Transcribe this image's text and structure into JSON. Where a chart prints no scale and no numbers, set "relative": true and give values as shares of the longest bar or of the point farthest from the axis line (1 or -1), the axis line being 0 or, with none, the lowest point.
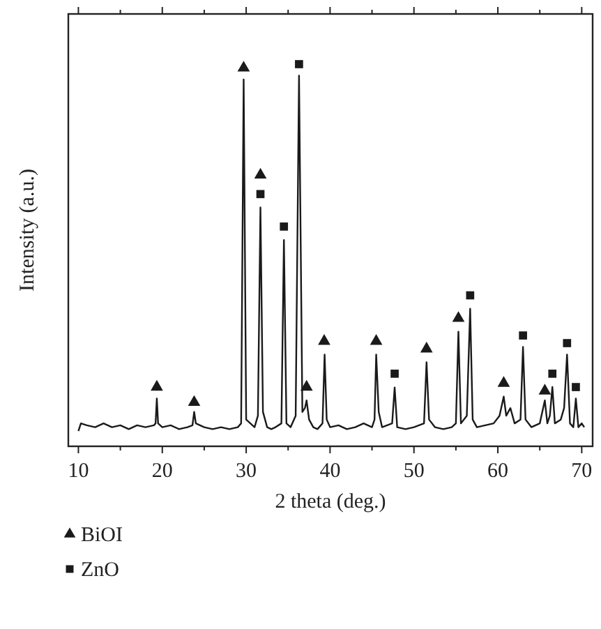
{
  "chart_data": {
    "type": "line",
    "xlabel": "2 theta (deg.)",
    "ylabel": "Intensity (a.u.)",
    "relative": true,
    "xlim": [
      8.8,
      71.3
    ],
    "xticks": [
      10,
      {
        "value": 15,
        "label": null
      },
      20,
      {
        "value": 25,
        "label": null
      },
      30,
      {
        "value": 35,
        "label": null
      },
      40,
      {
        "value": 45,
        "label": null
      },
      50,
      {
        "value": 55,
        "label": null
      },
      60,
      {
        "value": 65,
        "label": null
      },
      70
    ],
    "legend": "bottom",
    "line_style": "solid",
    "series": [
      {
        "color": "#1a1a1a",
        "x": [
          10,
          10.3,
          11,
          12,
          13,
          14,
          15,
          16,
          17,
          18,
          19,
          19.2,
          19.35,
          19.5,
          20,
          21,
          22,
          23,
          23.6,
          23.8,
          24,
          25,
          26,
          27,
          28,
          29,
          29.4,
          29.7,
          30,
          30.5,
          31,
          31.4,
          31.7,
          32,
          32.5,
          33,
          33.5,
          34.2,
          34.5,
          34.8,
          35.3,
          35.9,
          36.3,
          36.7,
          37,
          37.2,
          37.5,
          38,
          38.5,
          39.1,
          39.35,
          39.6,
          40,
          41,
          42,
          43,
          44,
          45,
          45.3,
          45.5,
          45.8,
          46.2,
          47.4,
          47.7,
          48,
          49,
          50,
          51.2,
          51.5,
          51.8,
          52.5,
          53.5,
          54.5,
          55,
          55.3,
          55.6,
          56.3,
          56.7,
          57,
          57.5,
          58.5,
          59.5,
          60.2,
          60.4,
          60.7,
          61,
          61.5,
          62,
          62.7,
          63,
          63.3,
          64,
          65,
          65.6,
          65.9,
          66.2,
          66.5,
          66.8,
          67.5,
          67.9,
          68.25,
          68.6,
          69,
          69.3,
          69.6,
          70,
          70.3
        ],
        "values": [
          0.04,
          0.06,
          0.055,
          0.05,
          0.06,
          0.05,
          0.055,
          0.045,
          0.055,
          0.05,
          0.055,
          0.06,
          0.125,
          0.06,
          0.05,
          0.055,
          0.045,
          0.05,
          0.055,
          0.09,
          0.06,
          0.05,
          0.045,
          0.05,
          0.045,
          0.05,
          0.06,
          0.96,
          0.07,
          0.06,
          0.05,
          0.08,
          0.625,
          0.09,
          0.05,
          0.045,
          0.05,
          0.06,
          0.54,
          0.06,
          0.05,
          0.08,
          0.97,
          0.09,
          0.1,
          0.12,
          0.07,
          0.05,
          0.045,
          0.06,
          0.24,
          0.07,
          0.05,
          0.055,
          0.045,
          0.05,
          0.06,
          0.05,
          0.07,
          0.24,
          0.09,
          0.05,
          0.06,
          0.154,
          0.05,
          0.045,
          0.05,
          0.06,
          0.22,
          0.07,
          0.05,
          0.045,
          0.05,
          0.06,
          0.3,
          0.06,
          0.08,
          0.36,
          0.07,
          0.05,
          0.055,
          0.06,
          0.08,
          0.1,
          0.13,
          0.08,
          0.1,
          0.06,
          0.07,
          0.26,
          0.07,
          0.05,
          0.06,
          0.12,
          0.06,
          0.08,
          0.155,
          0.06,
          0.07,
          0.1,
          0.24,
          0.06,
          0.05,
          0.125,
          0.05,
          0.06,
          0.05
        ]
      },
      {
        "type": "scatter",
        "name": "BiOI",
        "color": "#1a1a1a",
        "marker": "triangle",
        "x": [
          19.35,
          23.8,
          29.7,
          31.7,
          37.2,
          39.3,
          45.5,
          51.5,
          55.3,
          60.7,
          65.6
        ],
        "values": [
          0.155,
          0.115,
          0.99,
          0.71,
          0.155,
          0.275,
          0.275,
          0.255,
          0.335,
          0.165,
          0.145
        ]
      },
      {
        "type": "scatter",
        "name": "ZnO",
        "color": "#1a1a1a",
        "marker": "square",
        "x": [
          31.7,
          34.5,
          36.3,
          47.7,
          56.7,
          63.0,
          66.5,
          68.25,
          69.3
        ],
        "values": [
          0.66,
          0.575,
          1.0,
          0.19,
          0.395,
          0.29,
          0.19,
          0.27,
          0.155
        ]
      }
    ]
  }
}
